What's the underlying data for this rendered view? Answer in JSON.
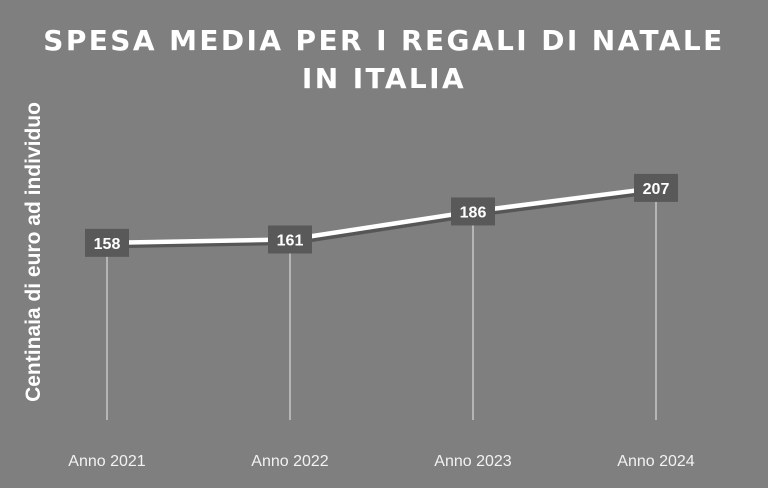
{
  "chart_data": {
    "type": "line",
    "title_lines": [
      "SPESA MEDIA PER I REGALI DI NATALE",
      "IN ITALIA"
    ],
    "ylabel": "Centinaia di euro ad individuo",
    "xlabel": "",
    "categories": [
      "Anno 2021",
      "Anno 2022",
      "Anno 2023",
      "Anno 2024"
    ],
    "series": [
      {
        "values": [
          158,
          161,
          186,
          207
        ]
      }
    ],
    "data_labels": [
      "158",
      "161",
      "186",
      "207"
    ],
    "ylim": [
      0,
      330
    ],
    "grid": false,
    "legend": "none",
    "colors": {
      "background": "#7f7f7f",
      "line": "#ffffff",
      "shadow": "#3a3a3a",
      "label_box": "#595959",
      "drop_line": "#d9d9d9"
    }
  }
}
